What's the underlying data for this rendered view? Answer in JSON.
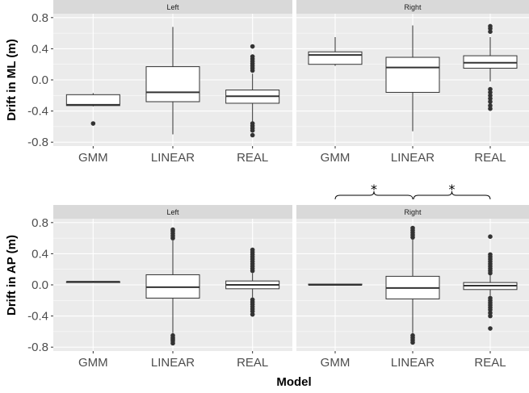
{
  "chart_data": [
    {
      "type": "box",
      "facet": "Left",
      "ylabel": "Drift in ML (m)",
      "categories": [
        "GMM",
        "LINEAR",
        "REAL"
      ],
      "ylim": [
        -0.85,
        0.85
      ],
      "yticks": [
        -0.8,
        -0.4,
        0.0,
        0.4,
        0.8
      ],
      "ytick_labels": [
        "-0.8",
        "-0.4",
        "0.0",
        "0.4",
        "0.8"
      ],
      "boxes": [
        {
          "category": "GMM",
          "whisker_low": -0.34,
          "q1": -0.33,
          "median": -0.32,
          "q3": -0.19,
          "whisker_high": -0.17,
          "outliers": [
            -0.56
          ]
        },
        {
          "category": "LINEAR",
          "whisker_low": -0.7,
          "q1": -0.28,
          "median": -0.16,
          "q3": 0.17,
          "whisker_high": 0.68,
          "outliers": []
        },
        {
          "category": "REAL",
          "whisker_low": -0.54,
          "q1": -0.3,
          "median": -0.21,
          "q3": -0.13,
          "whisker_high": 0.08,
          "outliers": [
            0.12,
            0.15,
            0.18,
            0.21,
            0.24,
            0.27,
            0.3,
            0.43,
            -0.56,
            -0.59,
            -0.62,
            -0.65,
            -0.71
          ]
        }
      ]
    },
    {
      "type": "box",
      "facet": "Right",
      "ylabel": "Drift in ML (m)",
      "categories": [
        "GMM",
        "LINEAR",
        "REAL"
      ],
      "ylim": [
        -0.85,
        0.85
      ],
      "yticks": [
        -0.8,
        -0.4,
        0.0,
        0.4,
        0.8
      ],
      "boxes": [
        {
          "category": "GMM",
          "whisker_low": 0.18,
          "q1": 0.2,
          "median": 0.32,
          "q3": 0.36,
          "whisker_high": 0.55,
          "outliers": []
        },
        {
          "category": "LINEAR",
          "whisker_low": -0.66,
          "q1": -0.16,
          "median": 0.16,
          "q3": 0.29,
          "whisker_high": 0.7,
          "outliers": []
        },
        {
          "category": "REAL",
          "whisker_low": -0.02,
          "q1": 0.15,
          "median": 0.22,
          "q3": 0.31,
          "whisker_high": 0.55,
          "outliers": [
            0.62,
            0.66,
            0.69,
            -0.12,
            -0.16,
            -0.2,
            -0.24,
            -0.28,
            -0.33,
            -0.37
          ]
        }
      ]
    },
    {
      "type": "box",
      "facet": "Left",
      "ylabel": "Drift in AP (m)",
      "xlabel": "Model",
      "categories": [
        "GMM",
        "LINEAR",
        "REAL"
      ],
      "ylim": [
        -0.85,
        0.85
      ],
      "yticks": [
        -0.8,
        -0.4,
        0.0,
        0.4,
        0.8
      ],
      "boxes": [
        {
          "category": "GMM",
          "whisker_low": 0.03,
          "q1": 0.03,
          "median": 0.04,
          "q3": 0.04,
          "whisker_high": 0.05,
          "outliers": []
        },
        {
          "category": "LINEAR",
          "whisker_low": -0.62,
          "q1": -0.17,
          "median": -0.03,
          "q3": 0.13,
          "whisker_high": 0.57,
          "outliers": [
            0.6,
            0.63,
            0.66,
            0.69,
            0.71,
            -0.65,
            -0.68,
            -0.7,
            -0.72,
            -0.75
          ]
        },
        {
          "category": "REAL",
          "whisker_low": -0.16,
          "q1": -0.05,
          "median": 0.0,
          "q3": 0.05,
          "whisker_high": 0.15,
          "outliers": [
            0.18,
            0.21,
            0.24,
            0.27,
            0.3,
            0.33,
            0.36,
            0.39,
            0.42,
            0.45,
            -0.19,
            -0.22,
            -0.25,
            -0.28,
            -0.31,
            -0.34,
            -0.38
          ]
        }
      ]
    },
    {
      "type": "box",
      "facet": "Right",
      "ylabel": "Drift in AP (m)",
      "xlabel": "Model",
      "categories": [
        "GMM",
        "LINEAR",
        "REAL"
      ],
      "ylim": [
        -0.85,
        0.85
      ],
      "yticks": [
        -0.8,
        -0.4,
        0.0,
        0.4,
        0.8
      ],
      "boxes": [
        {
          "category": "GMM",
          "whisker_low": 0.0,
          "q1": 0.0,
          "median": 0.0,
          "q3": 0.01,
          "whisker_high": 0.01,
          "outliers": []
        },
        {
          "category": "LINEAR",
          "whisker_low": -0.62,
          "q1": -0.18,
          "median": -0.04,
          "q3": 0.11,
          "whisker_high": 0.58,
          "outliers": [
            0.61,
            0.64,
            0.67,
            0.7,
            0.73,
            -0.65,
            -0.68,
            -0.71,
            -0.74
          ]
        },
        {
          "category": "REAL",
          "whisker_low": -0.14,
          "q1": -0.06,
          "median": -0.01,
          "q3": 0.03,
          "whisker_high": 0.12,
          "outliers": [
            0.15,
            0.18,
            0.21,
            0.24,
            0.27,
            0.3,
            0.33,
            0.36,
            0.39,
            0.62,
            -0.17,
            -0.2,
            -0.23,
            -0.26,
            -0.29,
            -0.32,
            -0.36,
            -0.4,
            -0.56
          ]
        }
      ],
      "annotations": [
        {
          "from": "GMM",
          "to": "LINEAR",
          "text": "*"
        },
        {
          "from": "LINEAR",
          "to": "REAL",
          "text": "*"
        }
      ]
    }
  ],
  "axes": {
    "ml_ylabel": "Drift in ML (m)",
    "ap_ylabel": "Drift in AP (m)",
    "xlabel": "Model"
  },
  "colors": {
    "panel_bg": "#ebebeb",
    "strip_bg": "#d9d9d9",
    "grid_major": "#ffffff",
    "box_fill": "#ffffff",
    "box_line": "#333333"
  }
}
